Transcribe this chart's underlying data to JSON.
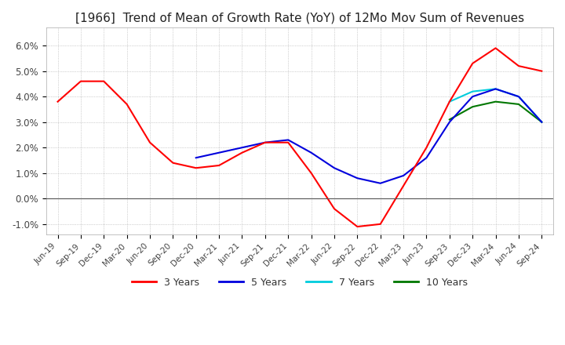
{
  "title": "[1966]  Trend of Mean of Growth Rate (YoY) of 12Mo Mov Sum of Revenues",
  "ylim": [
    -0.014,
    0.067
  ],
  "yticks": [
    -0.01,
    0.0,
    0.01,
    0.02,
    0.03,
    0.04,
    0.05,
    0.06
  ],
  "ytick_labels": [
    "-1.0%",
    "0.0%",
    "1.0%",
    "2.0%",
    "3.0%",
    "4.0%",
    "5.0%",
    "6.0%"
  ],
  "line_colors": {
    "3y": "#ff0000",
    "5y": "#0000dd",
    "7y": "#00ccdd",
    "10y": "#007700"
  },
  "line_widths": {
    "3y": 1.5,
    "5y": 1.5,
    "7y": 1.5,
    "10y": 1.5
  },
  "legend_labels": [
    "3 Years",
    "5 Years",
    "7 Years",
    "10 Years"
  ],
  "background_color": "#ffffff",
  "grid_color": "#aaaaaa",
  "title_fontsize": 11,
  "x_dates": [
    "Jun-19",
    "Sep-19",
    "Dec-19",
    "Mar-20",
    "Jun-20",
    "Sep-20",
    "Dec-20",
    "Mar-21",
    "Jun-21",
    "Sep-21",
    "Dec-21",
    "Mar-22",
    "Jun-22",
    "Sep-22",
    "Dec-22",
    "Mar-23",
    "Jun-23",
    "Sep-23",
    "Dec-23",
    "Mar-24",
    "Jun-24",
    "Sep-24"
  ],
  "series_3y": [
    0.038,
    0.046,
    0.046,
    0.037,
    0.022,
    0.014,
    0.012,
    0.013,
    0.018,
    0.022,
    0.022,
    0.01,
    -0.004,
    -0.011,
    -0.01,
    0.005,
    0.02,
    0.038,
    0.053,
    0.059,
    0.052,
    0.05
  ],
  "series_5y": [
    null,
    null,
    null,
    null,
    null,
    null,
    0.016,
    0.018,
    0.02,
    0.022,
    0.023,
    0.018,
    0.012,
    0.008,
    0.006,
    0.009,
    0.016,
    0.03,
    0.04,
    0.043,
    0.04,
    0.03
  ],
  "series_7y": [
    null,
    null,
    null,
    null,
    null,
    null,
    null,
    null,
    null,
    null,
    null,
    null,
    null,
    null,
    null,
    null,
    null,
    0.038,
    0.042,
    0.043,
    0.04,
    0.03
  ],
  "series_10y": [
    null,
    null,
    null,
    null,
    null,
    null,
    null,
    null,
    null,
    null,
    null,
    null,
    null,
    null,
    null,
    null,
    null,
    0.031,
    0.036,
    0.038,
    0.037,
    0.03
  ]
}
